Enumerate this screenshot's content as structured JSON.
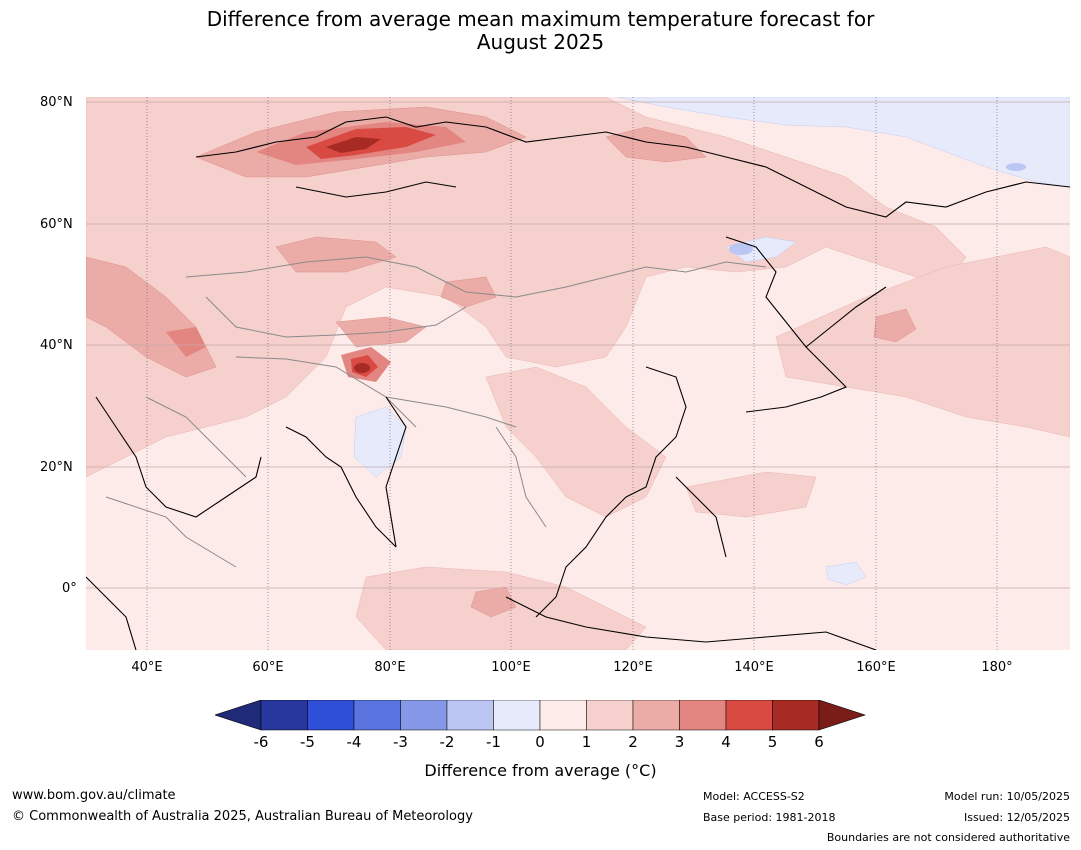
{
  "title_line1": "Difference from average mean maximum temperature forecast for",
  "title_line2": "August 2025",
  "lat_labels": [
    "80°N",
    "60°N",
    "40°N",
    "20°N",
    "0°"
  ],
  "lon_labels": [
    "40°E",
    "60°E",
    "80°E",
    "100°E",
    "120°E",
    "140°E",
    "160°E",
    "180°"
  ],
  "colorbar": {
    "ticks": [
      "-6",
      "-5",
      "-4",
      "-3",
      "-2",
      "-1",
      "0",
      "1",
      "2",
      "3",
      "4",
      "5",
      "6"
    ],
    "colors": [
      "#27379e",
      "#2f4fd8",
      "#5a74e0",
      "#8598e8",
      "#bcc6f2",
      "#e6eafa",
      "#fdebea",
      "#f5d0cc",
      "#ebaca7",
      "#e38580",
      "#d94a43",
      "#a82a24"
    ],
    "under_color": "#1f2a78",
    "over_color": "#7a1c18",
    "label": "Difference from average (°C)"
  },
  "footer": {
    "url": "www.bom.gov.au/climate",
    "copyright": "© Commonwealth of Australia 2025, Australian Bureau of Meteorology",
    "model": "Model: ACCESS-S2",
    "base_period": "Base period: 1981-2018",
    "model_run": "Model run: 10/05/2025",
    "issued": "Issued: 12/05/2025",
    "disclaimer": "Boundaries are not considered authoritative"
  }
}
